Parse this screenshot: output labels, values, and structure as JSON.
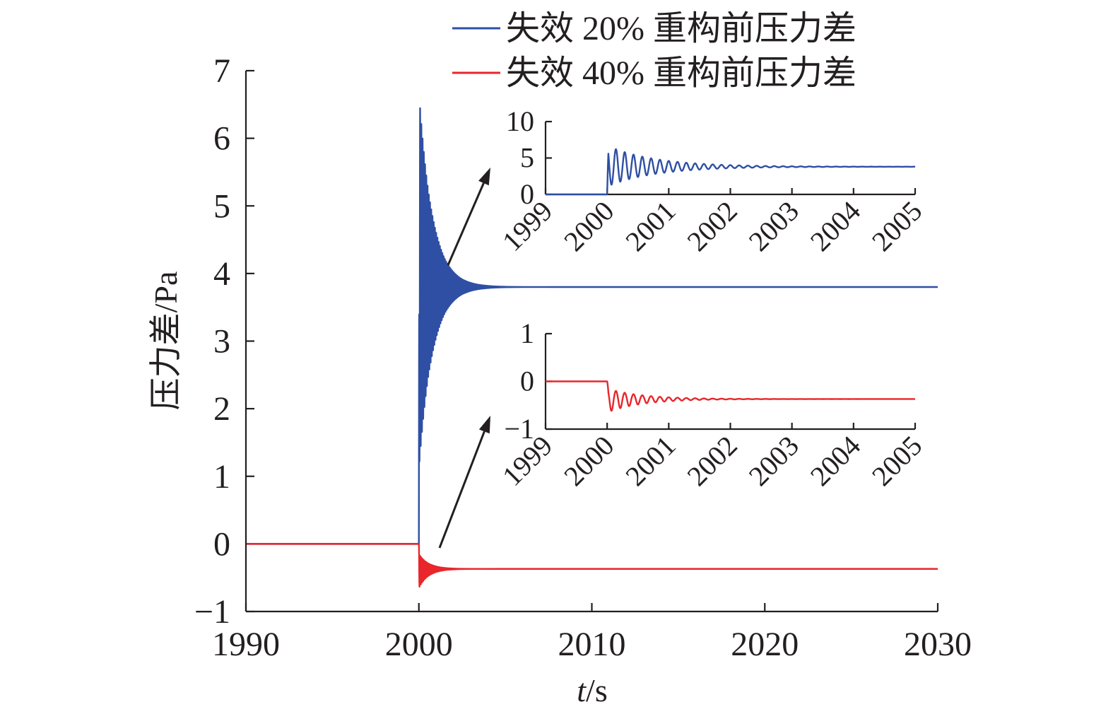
{
  "chart_data": {
    "type": "line",
    "xlabel_italic": "t",
    "xlabel_unit": "/s",
    "ylabel": "压力差/Pa",
    "xlim": [
      1990,
      2030
    ],
    "ylim": [
      -1,
      7
    ],
    "xticks": [
      1990,
      2000,
      2010,
      2020,
      2030
    ],
    "xtick_labels": [
      "1990",
      "2000",
      "2010",
      "2020",
      "2030"
    ],
    "yticks": [
      -1,
      0,
      1,
      2,
      3,
      4,
      5,
      6,
      7
    ],
    "ytick_labels": [
      "−1",
      "0",
      "1",
      "2",
      "3",
      "4",
      "5",
      "6",
      "7"
    ],
    "legend_position": "top-right",
    "series": [
      {
        "name": "失效 20% 重构前压力差",
        "color": "#2e4fa3",
        "initial_value": 0,
        "step_time": 2000,
        "first_peak": 6.7,
        "first_trough": 1.1,
        "steady_value": 3.8,
        "settle_time": 2003.5
      },
      {
        "name": "失效 40% 重构前压力差",
        "color": "#e8262b",
        "initial_value": 0,
        "step_time": 2000,
        "first_peak": -0.15,
        "first_trough": -0.65,
        "steady_value": -0.37,
        "settle_time": 2002.5
      }
    ],
    "insets": [
      {
        "series_index": 0,
        "xlim": [
          1999,
          2005
        ],
        "ylim": [
          0,
          10
        ],
        "xticks": [
          1999,
          2000,
          2001,
          2002,
          2003,
          2004,
          2005
        ],
        "xtick_labels": [
          "1999",
          "2000",
          "2001",
          "2002",
          "2003",
          "2004",
          "2005"
        ],
        "yticks": [
          0,
          5,
          10
        ],
        "ytick_labels": [
          "0",
          "5",
          "10"
        ]
      },
      {
        "series_index": 1,
        "xlim": [
          1999,
          2005
        ],
        "ylim": [
          -1,
          1
        ],
        "xticks": [
          1999,
          2000,
          2001,
          2002,
          2003,
          2004,
          2005
        ],
        "xtick_labels": [
          "1999",
          "2000",
          "2001",
          "2002",
          "2003",
          "2004",
          "2005"
        ],
        "yticks": [
          -1,
          0,
          1
        ],
        "ytick_labels": [
          "−1",
          "0",
          "1"
        ]
      }
    ]
  }
}
